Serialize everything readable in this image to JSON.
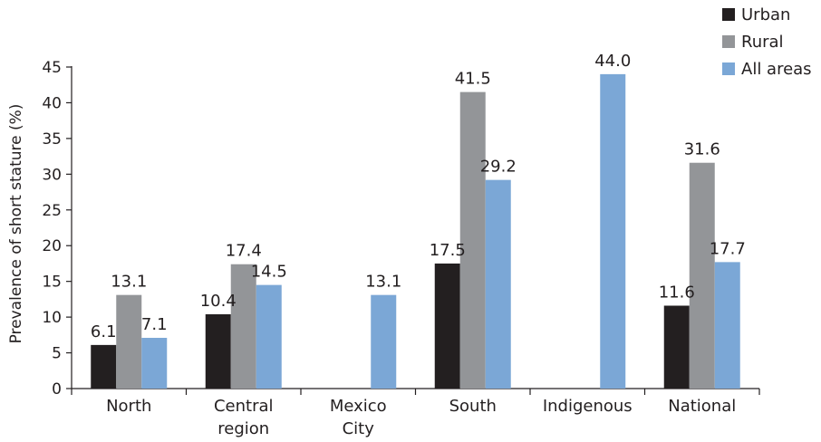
{
  "chart_data": {
    "type": "bar",
    "title": "",
    "xlabel": "",
    "ylabel": "Prevalence of short stature (%)",
    "ylim": [
      0,
      45
    ],
    "yticks": [
      0,
      5,
      10,
      15,
      20,
      25,
      30,
      35,
      40,
      45
    ],
    "grid": false,
    "legend_position": "top-right",
    "categories": [
      [
        "North"
      ],
      [
        "Central",
        "region"
      ],
      [
        "Mexico",
        "City"
      ],
      [
        "South"
      ],
      [
        "Indigenous"
      ],
      [
        "National"
      ]
    ],
    "series": [
      {
        "name": "Urban",
        "color": "#231f20",
        "values": [
          6.1,
          10.4,
          null,
          17.5,
          null,
          11.6
        ],
        "labels": [
          "6.1",
          "10.4",
          null,
          "17.5",
          null,
          "11.6"
        ]
      },
      {
        "name": "Rural",
        "color": "#939598",
        "values": [
          13.1,
          17.4,
          null,
          41.5,
          null,
          31.6
        ],
        "labels": [
          "13.1",
          "17.4",
          null,
          "41.5",
          null,
          "31.6"
        ]
      },
      {
        "name": "All areas",
        "color": "#7ba7d6",
        "values": [
          7.1,
          14.5,
          13.1,
          29.2,
          44.0,
          17.7
        ],
        "labels": [
          "7.1",
          "14.5",
          "13.1",
          "29.2",
          "44.0",
          "17.7"
        ]
      }
    ]
  }
}
